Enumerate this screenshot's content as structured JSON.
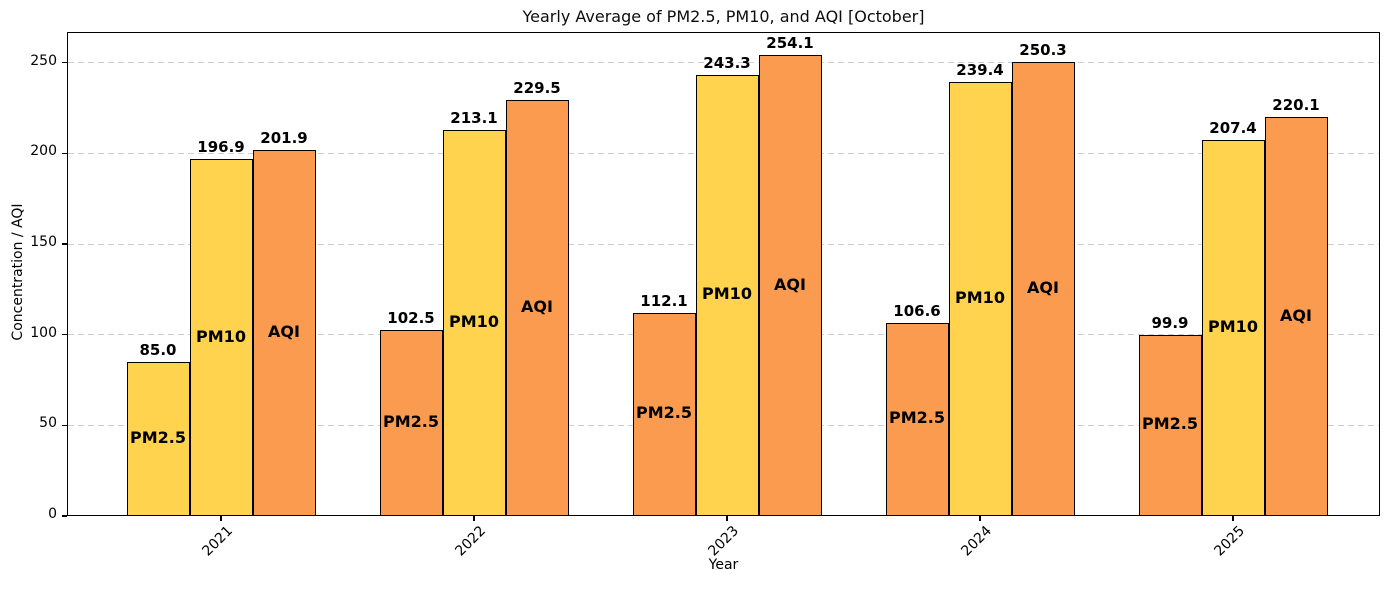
{
  "figure": {
    "title": "Yearly Average of PM2.5, PM10, and AQI [October]",
    "xlabel": "Year",
    "ylabel": "Concentration / AQI"
  },
  "chart_data": {
    "type": "bar",
    "title": "Yearly Average of PM2.5, PM10, and AQI [October]",
    "xlabel": "Year",
    "ylabel": "Concentration / AQI",
    "categories": [
      "2021",
      "2022",
      "2023",
      "2024",
      "2025"
    ],
    "series": [
      {
        "name": "PM2.5",
        "values": [
          85.0,
          102.5,
          112.1,
          106.6,
          99.9
        ],
        "bar_colors": [
          "yellow",
          "orange",
          "orange",
          "orange",
          "orange"
        ]
      },
      {
        "name": "PM10",
        "values": [
          196.9,
          213.1,
          243.3,
          239.4,
          207.4
        ],
        "bar_colors": [
          "yellow",
          "yellow",
          "yellow",
          "yellow",
          "yellow"
        ]
      },
      {
        "name": "AQI",
        "values": [
          201.9,
          229.5,
          254.1,
          250.3,
          220.1
        ],
        "bar_colors": [
          "orange",
          "orange",
          "orange",
          "orange",
          "orange"
        ]
      }
    ],
    "value_label_format": "one-decimal, bold, above each bar",
    "series_name_label": "bold, centered inside each bar",
    "palette": {
      "yellow": "#FFD34D",
      "orange": "#FB9B50",
      "edge": "#000000"
    },
    "yticks": [
      0,
      50,
      100,
      150,
      200,
      250
    ],
    "ylim": [
      0,
      267
    ],
    "grid": {
      "axis": "y",
      "style": "dashed",
      "color": "#CFCFCF"
    },
    "legend": "none"
  }
}
